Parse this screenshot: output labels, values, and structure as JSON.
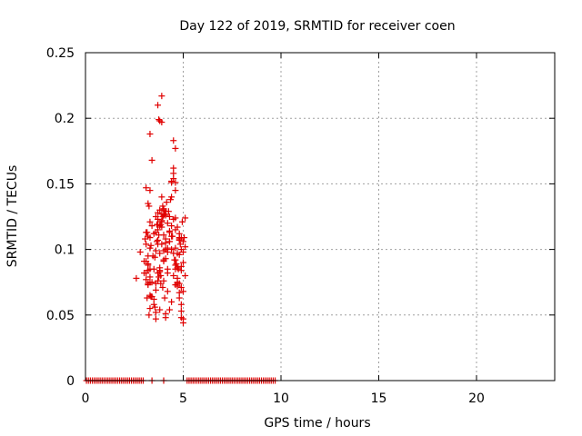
{
  "chart_data": {
    "type": "scatter",
    "title": "Day 122 of 2019, SRMTID for receiver coen",
    "xlabel": "GPS time / hours",
    "ylabel": "SRMTID / TECUs",
    "xlim": [
      0,
      24
    ],
    "ylim": [
      0,
      0.25
    ],
    "xticks": [
      0,
      5,
      10,
      15,
      20
    ],
    "yticks": [
      0,
      0.05,
      0.1,
      0.15,
      0.2,
      0.25
    ],
    "xtick_labels": [
      "0",
      "5",
      "10",
      "15",
      "20"
    ],
    "ytick_labels": [
      "0",
      "0.05",
      "0.1",
      "0.15",
      "0.2",
      "0.25"
    ],
    "grid": true,
    "marker": "+",
    "color": "#e00000",
    "series": [
      {
        "x": [
          2.6,
          2.8,
          3.0,
          3.1,
          3.1,
          3.2,
          3.2,
          3.3,
          3.3,
          3.3,
          3.2,
          3.1,
          3.1,
          3.2,
          3.2,
          3.3,
          3.3,
          3.2,
          3.15,
          3.25,
          3.3,
          3.35,
          3.4,
          3.4,
          3.3,
          3.2,
          3.1,
          3.2,
          3.3,
          3.4,
          3.5,
          3.55,
          3.6,
          3.6,
          3.65,
          3.7,
          3.7,
          3.7,
          3.75,
          3.8,
          3.8,
          3.6,
          3.6,
          3.7,
          3.5,
          3.5,
          3.6,
          3.7,
          3.8,
          3.7,
          3.8,
          3.75,
          3.9,
          3.9,
          3.9,
          4.0,
          4.0,
          4.0,
          4.1,
          4.1,
          4.1,
          3.8,
          3.9,
          3.9,
          4.0,
          3.95,
          3.85,
          3.85,
          4.05,
          4.1,
          4.2,
          4.2,
          4.2,
          4.3,
          4.3,
          4.2,
          4.3,
          4.3,
          4.4,
          4.4,
          4.4,
          4.4,
          4.5,
          4.5,
          4.5,
          4.6,
          4.6,
          4.6,
          4.5,
          4.5,
          4.6,
          4.6,
          4.7,
          4.7,
          4.7,
          4.6,
          4.6,
          4.7,
          4.8,
          4.8,
          4.8,
          4.9,
          4.9,
          4.8,
          4.8,
          4.9,
          4.9,
          4.9,
          5.0,
          5.0,
          5.0,
          5.1,
          5.1,
          4.95,
          5.05,
          4.85,
          4.75,
          4.65,
          4.55,
          4.45,
          4.35,
          4.25,
          4.15,
          4.05,
          3.95,
          3.85,
          3.75,
          3.65,
          3.55,
          3.45,
          3.35,
          3.25,
          3.15,
          3.05,
          4.0,
          4.1,
          4.3,
          4.4,
          4.5,
          4.6,
          4.7,
          4.8,
          4.9,
          5.0,
          5.1,
          3.6,
          3.7,
          3.8,
          3.9,
          4.0,
          4.2,
          4.4,
          4.6,
          4.8,
          5.0,
          3.3,
          3.5,
          4.1,
          4.3,
          4.5,
          4.7,
          4.9,
          5.0,
          4.9,
          4.8,
          4.7,
          4.6,
          4.4,
          4.2,
          4.0,
          3.8,
          3.6,
          3.4,
          3.2,
          3.0,
          3.1,
          3.3,
          3.7,
          3.9,
          4.1,
          3.8,
          3.9,
          3.95,
          4.0,
          4.1,
          3.7
        ],
        "y": [
          0.078,
          0.098,
          0.091,
          0.147,
          0.113,
          0.11,
          0.135,
          0.145,
          0.121,
          0.101,
          0.088,
          0.082,
          0.077,
          0.074,
          0.084,
          0.085,
          0.079,
          0.073,
          0.063,
          0.05,
          0.055,
          0.064,
          0.118,
          0.168,
          0.188,
          0.095,
          0.091,
          0.089,
          0.075,
          0.064,
          0.062,
          0.056,
          0.052,
          0.047,
          0.119,
          0.123,
          0.104,
          0.082,
          0.079,
          0.083,
          0.086,
          0.099,
          0.113,
          0.119,
          0.112,
          0.085,
          0.069,
          0.076,
          0.054,
          0.21,
          0.198,
          0.199,
          0.197,
          0.217,
          0.122,
          0.126,
          0.13,
          0.111,
          0.105,
          0.1,
          0.093,
          0.097,
          0.104,
          0.117,
          0.076,
          0.071,
          0.074,
          0.08,
          0.063,
          0.048,
          0.068,
          0.085,
          0.098,
          0.106,
          0.114,
          0.12,
          0.125,
          0.113,
          0.118,
          0.14,
          0.151,
          0.152,
          0.154,
          0.162,
          0.158,
          0.151,
          0.145,
          0.177,
          0.183,
          0.123,
          0.115,
          0.101,
          0.078,
          0.074,
          0.072,
          0.085,
          0.092,
          0.097,
          0.109,
          0.112,
          0.096,
          0.084,
          0.071,
          0.067,
          0.063,
          0.058,
          0.053,
          0.048,
          0.044,
          0.047,
          0.106,
          0.102,
          0.124,
          0.121,
          0.109,
          0.104,
          0.085,
          0.089,
          0.092,
          0.11,
          0.138,
          0.129,
          0.136,
          0.127,
          0.125,
          0.119,
          0.111,
          0.106,
          0.094,
          0.095,
          0.103,
          0.133,
          0.113,
          0.108,
          0.099,
          0.108,
          0.106,
          0.1,
          0.097,
          0.088,
          0.075,
          0.107,
          0.109,
          0.098,
          0.08,
          0.125,
          0.107,
          0.118,
          0.14,
          0.092,
          0.082,
          0.06,
          0.073,
          0.074,
          0.068,
          0.065,
          0.058,
          0.051,
          0.054,
          0.08,
          0.086,
          0.087,
          0.09,
          0.1,
          0.108,
          0.117,
          0.124,
          0.11,
          0.101,
          0.091,
          0.084,
          0.074,
          0.075,
          0.084,
          0.082,
          0.104,
          0.109,
          0.115,
          0.121,
          0.126,
          0.13,
          0.127,
          0.133,
          0.131,
          0.129,
          0.128
        ]
      },
      {
        "x": [
          0.05,
          0.15,
          0.25,
          0.35,
          0.45,
          0.55,
          0.65,
          0.75,
          0.85,
          0.95,
          1.05,
          1.15,
          1.25,
          1.35,
          1.45,
          1.55,
          1.65,
          1.75,
          1.85,
          1.95,
          2.05,
          2.15,
          2.25,
          2.35,
          2.45,
          2.55,
          2.65,
          2.75,
          2.85,
          2.95,
          3.4,
          4.0,
          5.2,
          5.3,
          5.4,
          5.5,
          5.6,
          5.7,
          5.8,
          5.9,
          6.0,
          6.1,
          6.2,
          6.3,
          6.4,
          6.5,
          6.6,
          6.7,
          6.8,
          6.9,
          7.0,
          7.1,
          7.2,
          7.3,
          7.4,
          7.5,
          7.6,
          7.7,
          7.8,
          7.9,
          8.0,
          8.1,
          8.2,
          8.3,
          8.4,
          8.5,
          8.6,
          8.7,
          8.8,
          8.9,
          9.0,
          9.1,
          9.2,
          9.3,
          9.4,
          9.5,
          9.6,
          9.7
        ],
        "y": [
          0,
          0,
          0,
          0,
          0,
          0,
          0,
          0,
          0,
          0,
          0,
          0,
          0,
          0,
          0,
          0,
          0,
          0,
          0,
          0,
          0,
          0,
          0,
          0,
          0,
          0,
          0,
          0,
          0,
          0,
          0,
          0,
          0,
          0,
          0,
          0,
          0,
          0,
          0,
          0,
          0,
          0,
          0,
          0,
          0,
          0,
          0,
          0,
          0,
          0,
          0,
          0,
          0,
          0,
          0,
          0,
          0,
          0,
          0,
          0,
          0,
          0,
          0,
          0,
          0,
          0,
          0,
          0,
          0,
          0,
          0,
          0,
          0,
          0,
          0,
          0,
          0,
          0
        ]
      }
    ]
  }
}
